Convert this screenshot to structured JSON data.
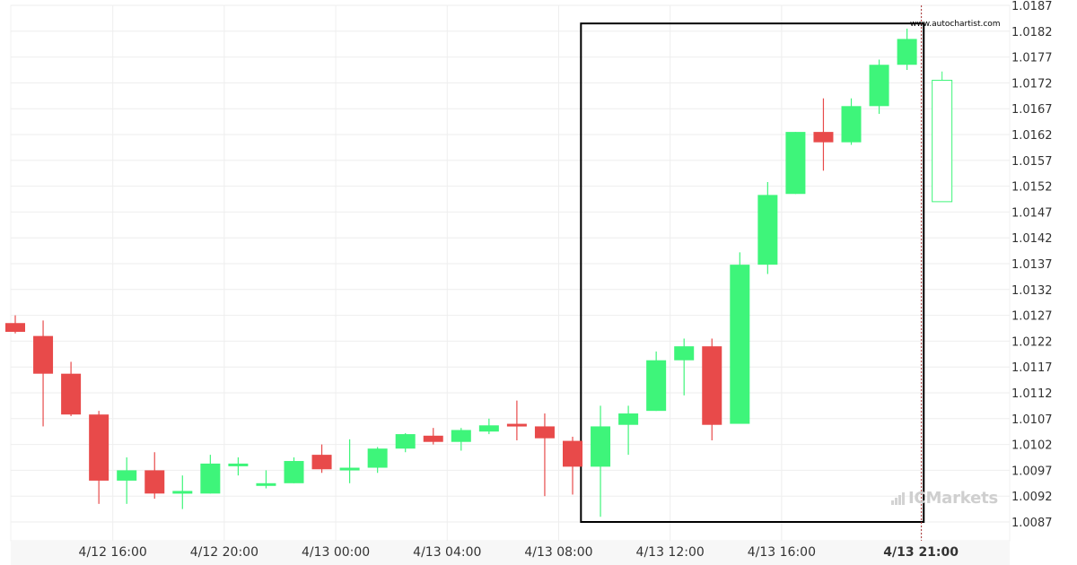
{
  "site_label": "www.autochartist.com",
  "brand_watermark": "ICMarkets",
  "colors": {
    "bull": "#3ef57a",
    "bear": "#e84a4a",
    "grid": "#eeeeee",
    "axis_text": "#333333",
    "pattern_box": "#000000",
    "projection": "#3ef57a"
  },
  "chart_data": {
    "type": "candlestick",
    "ylim": [
      1.0082,
      1.0187
    ],
    "y_ticks": [
      "1.0187",
      "1.0182",
      "1.0177",
      "1.0172",
      "1.0167",
      "1.0162",
      "1.0157",
      "1.0152",
      "1.0147",
      "1.0142",
      "1.0137",
      "1.0132",
      "1.0127",
      "1.0122",
      "1.0117",
      "1.0112",
      "1.0107",
      "1.0102",
      "1.0097",
      "1.0092",
      "1.0087"
    ],
    "x_labels": [
      {
        "text": "4/12 16:00",
        "index": 3.5,
        "bold": false
      },
      {
        "text": "4/12 20:00",
        "index": 7.5,
        "bold": false
      },
      {
        "text": "4/13 00:00",
        "index": 11.5,
        "bold": false
      },
      {
        "text": "4/13 04:00",
        "index": 15.5,
        "bold": false
      },
      {
        "text": "4/13 08:00",
        "index": 19.5,
        "bold": false
      },
      {
        "text": "4/13 12:00",
        "index": 23.5,
        "bold": false
      },
      {
        "text": "4/13 16:00",
        "index": 27.5,
        "bold": false
      },
      {
        "text": "4/13 21:00",
        "index": 32.5,
        "bold": true
      }
    ],
    "candles": [
      {
        "o": 1.01255,
        "h": 1.0127,
        "l": 1.01235,
        "c": 1.01238
      },
      {
        "o": 1.0123,
        "h": 1.0126,
        "l": 1.01055,
        "c": 1.01157
      },
      {
        "o": 1.01157,
        "h": 1.0118,
        "l": 1.01075,
        "c": 1.01078
      },
      {
        "o": 1.01078,
        "h": 1.01085,
        "l": 1.00905,
        "c": 1.0095
      },
      {
        "o": 1.0095,
        "h": 1.00995,
        "l": 1.00905,
        "c": 1.0097
      },
      {
        "o": 1.0097,
        "h": 1.01005,
        "l": 1.00915,
        "c": 1.00925
      },
      {
        "o": 1.00925,
        "h": 1.0096,
        "l": 1.00895,
        "c": 1.0093
      },
      {
        "o": 1.00925,
        "h": 1.01,
        "l": 1.00925,
        "c": 1.00983
      },
      {
        "o": 1.00983,
        "h": 1.00995,
        "l": 1.0096,
        "c": 1.00983
      },
      {
        "o": 1.0094,
        "h": 1.0097,
        "l": 1.00935,
        "c": 1.00945
      },
      {
        "o": 1.00945,
        "h": 1.00995,
        "l": 1.00945,
        "c": 1.00988
      },
      {
        "o": 1.01,
        "h": 1.0102,
        "l": 1.00965,
        "c": 1.00972
      },
      {
        "o": 1.0097,
        "h": 1.0103,
        "l": 1.00945,
        "c": 1.00975
      },
      {
        "o": 1.00975,
        "h": 1.01015,
        "l": 1.00965,
        "c": 1.01012
      },
      {
        "o": 1.01012,
        "h": 1.01042,
        "l": 1.01005,
        "c": 1.0104
      },
      {
        "o": 1.01037,
        "h": 1.01052,
        "l": 1.0102,
        "c": 1.01025
      },
      {
        "o": 1.01025,
        "h": 1.01052,
        "l": 1.01008,
        "c": 1.01048
      },
      {
        "o": 1.01045,
        "h": 1.0107,
        "l": 1.0104,
        "c": 1.01057
      },
      {
        "o": 1.0106,
        "h": 1.01105,
        "l": 1.01028,
        "c": 1.01057
      },
      {
        "o": 1.01055,
        "h": 1.0108,
        "l": 1.0092,
        "c": 1.01032
      },
      {
        "o": 1.01027,
        "h": 1.01035,
        "l": 1.00923,
        "c": 1.00977
      },
      {
        "o": 1.00977,
        "h": 1.01095,
        "l": 1.0088,
        "c": 1.01055
      },
      {
        "o": 1.01058,
        "h": 1.01095,
        "l": 1.01,
        "c": 1.0108
      },
      {
        "o": 1.01085,
        "h": 1.012,
        "l": 1.01085,
        "c": 1.01183
      },
      {
        "o": 1.01183,
        "h": 1.01225,
        "l": 1.01115,
        "c": 1.0121
      },
      {
        "o": 1.0121,
        "h": 1.01225,
        "l": 1.01028,
        "c": 1.01058
      },
      {
        "o": 1.0106,
        "h": 1.01392,
        "l": 1.0106,
        "c": 1.01368
      },
      {
        "o": 1.01368,
        "h": 1.01528,
        "l": 1.0135,
        "c": 1.01503
      },
      {
        "o": 1.01505,
        "h": 1.01625,
        "l": 1.01505,
        "c": 1.01625
      },
      {
        "o": 1.01625,
        "h": 1.0169,
        "l": 1.0155,
        "c": 1.01605
      },
      {
        "o": 1.01605,
        "h": 1.0169,
        "l": 1.016,
        "c": 1.01675
      },
      {
        "o": 1.01675,
        "h": 1.01765,
        "l": 1.0166,
        "c": 1.01755
      },
      {
        "o": 1.01755,
        "h": 1.01825,
        "l": 1.01745,
        "c": 1.01805
      }
    ],
    "projection": {
      "index": 33,
      "top": 1.01725,
      "bottom": 1.0149,
      "wick_high": 1.01742
    },
    "pattern_box": {
      "start_index": 20.3,
      "end_index": 32.6,
      "top": 1.01835,
      "bottom": 1.0087
    },
    "current_marker_index": 32.5,
    "grid": true
  }
}
